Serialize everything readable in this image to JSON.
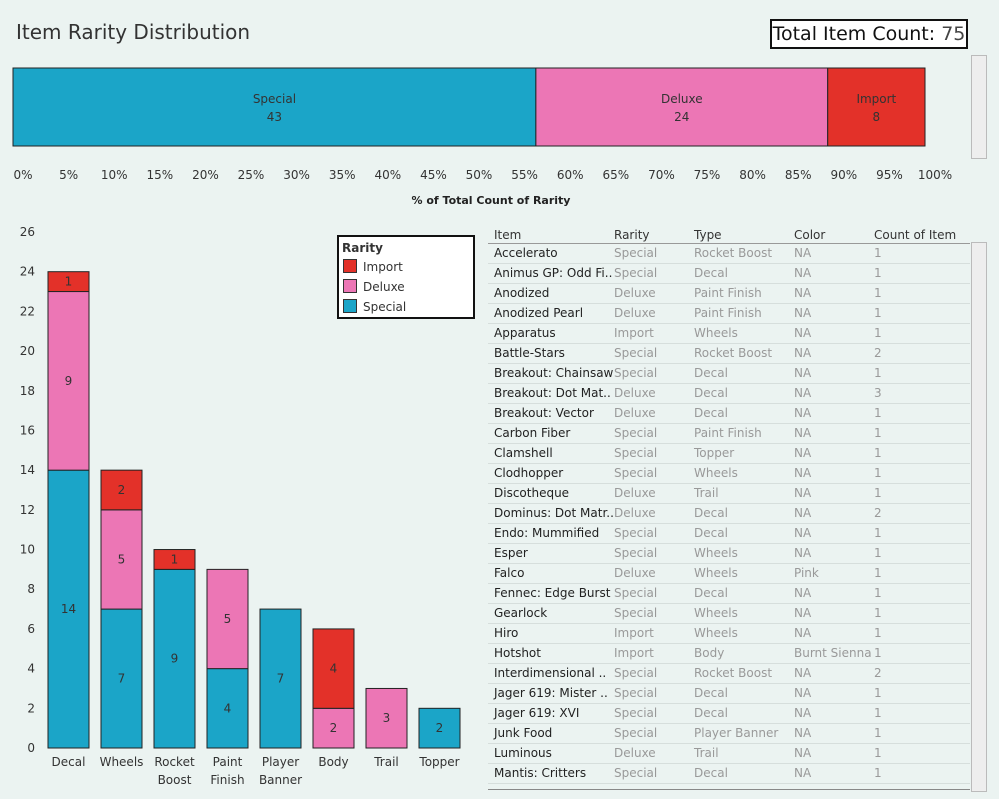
{
  "header": {
    "title": "Item Rarity Distribution",
    "total_label": "Total Item Count:",
    "total_value": "75"
  },
  "colors": {
    "Special": "#1ba5c8",
    "Deluxe": "#ec76b5",
    "Import": "#e33129"
  },
  "chart_data": [
    {
      "type": "bar",
      "orientation": "horizontal-stacked-100",
      "xlabel": "% of Total Count of Rarity",
      "xlim": [
        0,
        100
      ],
      "xticks": [
        "0%",
        "5%",
        "10%",
        "15%",
        "20%",
        "25%",
        "30%",
        "35%",
        "40%",
        "45%",
        "50%",
        "55%",
        "60%",
        "65%",
        "70%",
        "75%",
        "80%",
        "85%",
        "90%",
        "95%",
        "100%"
      ],
      "series": [
        {
          "name": "Special",
          "values": [
            43
          ]
        },
        {
          "name": "Deluxe",
          "values": [
            24
          ]
        },
        {
          "name": "Import",
          "values": [
            8
          ]
        }
      ]
    },
    {
      "type": "bar",
      "orientation": "vertical-stacked",
      "categories": [
        "Decal",
        "Wheels",
        "Rocket Boost",
        "Paint Finish",
        "Player Banner",
        "Body",
        "Trail",
        "Topper"
      ],
      "ylim": [
        0,
        26
      ],
      "yticks": [
        0,
        2,
        4,
        6,
        8,
        10,
        12,
        14,
        16,
        18,
        20,
        22,
        24,
        26
      ],
      "series": [
        {
          "name": "Special",
          "values": [
            14,
            7,
            9,
            4,
            7,
            0,
            0,
            2
          ]
        },
        {
          "name": "Deluxe",
          "values": [
            9,
            5,
            0,
            5,
            0,
            2,
            3,
            0
          ]
        },
        {
          "name": "Import",
          "values": [
            1,
            2,
            1,
            0,
            0,
            4,
            0,
            0
          ]
        }
      ],
      "legend": {
        "title": "Rarity",
        "items": [
          "Import",
          "Deluxe",
          "Special"
        ],
        "placement": "top-right"
      }
    }
  ],
  "table": {
    "columns": [
      "Item",
      "Rarity",
      "Type",
      "Color",
      "Count of Item"
    ],
    "rows": [
      [
        "Accelerato",
        "Special",
        "Rocket Boost",
        "NA",
        "1"
      ],
      [
        "Animus GP: Odd Fi..",
        "Special",
        "Decal",
        "NA",
        "1"
      ],
      [
        "Anodized",
        "Deluxe",
        "Paint Finish",
        "NA",
        "1"
      ],
      [
        "Anodized Pearl",
        "Deluxe",
        "Paint Finish",
        "NA",
        "1"
      ],
      [
        "Apparatus",
        "Import",
        "Wheels",
        "NA",
        "1"
      ],
      [
        "Battle-Stars",
        "Special",
        "Rocket Boost",
        "NA",
        "2"
      ],
      [
        "Breakout: Chainsaw",
        "Special",
        "Decal",
        "NA",
        "1"
      ],
      [
        "Breakout: Dot Mat..",
        "Deluxe",
        "Decal",
        "NA",
        "3"
      ],
      [
        "Breakout: Vector",
        "Deluxe",
        "Decal",
        "NA",
        "1"
      ],
      [
        "Carbon Fiber",
        "Special",
        "Paint Finish",
        "NA",
        "1"
      ],
      [
        "Clamshell",
        "Special",
        "Topper",
        "NA",
        "1"
      ],
      [
        "Clodhopper",
        "Special",
        "Wheels",
        "NA",
        "1"
      ],
      [
        "Discotheque",
        "Deluxe",
        "Trail",
        "NA",
        "1"
      ],
      [
        "Dominus: Dot Matr..",
        "Deluxe",
        "Decal",
        "NA",
        "2"
      ],
      [
        "Endo: Mummified",
        "Special",
        "Decal",
        "NA",
        "1"
      ],
      [
        "Esper",
        "Special",
        "Wheels",
        "NA",
        "1"
      ],
      [
        "Falco",
        "Deluxe",
        "Wheels",
        "Pink",
        "1"
      ],
      [
        "Fennec: Edge Burst",
        "Special",
        "Decal",
        "NA",
        "1"
      ],
      [
        "Gearlock",
        "Special",
        "Wheels",
        "NA",
        "1"
      ],
      [
        "Hiro",
        "Import",
        "Wheels",
        "NA",
        "1"
      ],
      [
        "Hotshot",
        "Import",
        "Body",
        "Burnt Sienna",
        "1"
      ],
      [
        "Interdimensional ..",
        "Special",
        "Rocket Boost",
        "NA",
        "2"
      ],
      [
        "Jager 619: Mister ..",
        "Special",
        "Decal",
        "NA",
        "1"
      ],
      [
        "Jager 619: XVI",
        "Special",
        "Decal",
        "NA",
        "1"
      ],
      [
        "Junk Food",
        "Special",
        "Player Banner",
        "NA",
        "1"
      ],
      [
        "Luminous",
        "Deluxe",
        "Trail",
        "NA",
        "1"
      ],
      [
        "Mantis: Critters",
        "Special",
        "Decal",
        "NA",
        "1"
      ]
    ]
  }
}
